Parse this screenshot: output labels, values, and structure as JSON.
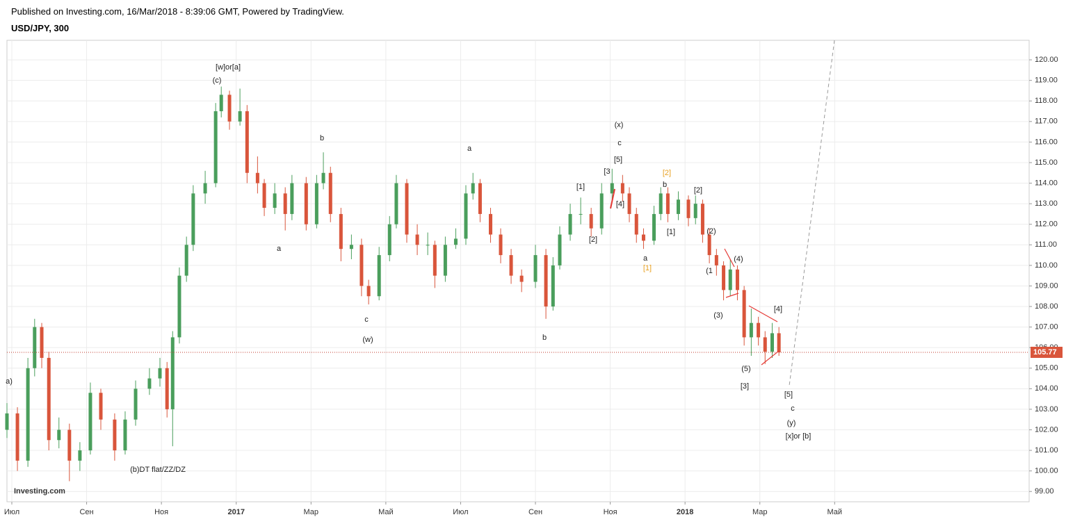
{
  "header": {
    "published": "Published on Investing.com, 16/Mar/2018 - 8:39:06 GMT, Powered by TradingView.",
    "symbol": "USD/JPY, 300"
  },
  "logo": "Investing.com",
  "chart_data": {
    "type": "candlestick",
    "up_color": "#4a9e5c",
    "down_color": "#d9553b",
    "grid": true,
    "x": [
      -0.13,
      0.15,
      0.43,
      0.61,
      0.8,
      0.99,
      1.26,
      1.54,
      1.82,
      2.1,
      2.38,
      2.75,
      3.03,
      3.31,
      3.68,
      3.96,
      4.15,
      4.3,
      4.48,
      4.67,
      4.85,
      5.17,
      5.45,
      5.6,
      5.82,
      6.1,
      6.29,
      6.57,
      6.75,
      7.03,
      7.31,
      7.49,
      7.87,
      8.15,
      8.33,
      8.52,
      8.8,
      9.08,
      9.35,
      9.54,
      9.82,
      10.1,
      10.28,
      10.56,
      10.84,
      11.12,
      11.31,
      11.59,
      11.87,
      12.14,
      12.33,
      12.52,
      12.8,
      13.07,
      13.35,
      13.63,
      14.0,
      14.28,
      14.47,
      14.65,
      14.93,
      15.21,
      15.49,
      15.77,
      16.05,
      16.33,
      16.51,
      16.7,
      16.89,
      17.17,
      17.35,
      17.54,
      17.82,
      18.09,
      18.28,
      18.47,
      18.65,
      18.84,
      19.03,
      19.21,
      19.4,
      19.58,
      19.77,
      19.96,
      20.14,
      20.33,
      20.51
    ],
    "open": [
      102.0,
      102.8,
      100.5,
      105,
      107,
      105.5,
      101.5,
      102,
      100.5,
      101,
      103.8,
      102.5,
      101,
      102.5,
      104,
      104.5,
      105,
      103,
      106.5,
      109.5,
      111,
      113.5,
      114,
      117.5,
      118.3,
      117,
      117.5,
      114.5,
      114,
      112.8,
      113.5,
      112.5,
      114,
      112,
      114,
      114.5,
      112.5,
      110.8,
      111,
      109,
      108.5,
      110.5,
      112,
      114,
      111.5,
      111,
      111,
      109.5,
      111,
      111.3,
      113.5,
      114,
      112.5,
      111.5,
      110.5,
      109.5,
      109.2,
      110.5,
      108,
      110,
      111.5,
      112.5,
      112.5,
      111.8,
      113.5,
      114,
      113.5,
      112.5,
      111.5,
      111.2,
      112.5,
      113.5,
      112.5,
      113.2,
      112.3,
      113,
      111.5,
      110.5,
      110,
      108.8,
      109.8,
      108.8,
      106.5,
      107.2,
      106.5,
      105.8,
      106.7
    ],
    "high": [
      103.3,
      103.1,
      105.5,
      107.4,
      107.2,
      105.8,
      102.6,
      102.3,
      101.4,
      104.3,
      104,
      102.8,
      102.9,
      104.4,
      105,
      105.5,
      105.3,
      106.8,
      109.9,
      111.4,
      113.9,
      114.6,
      117.9,
      118.7,
      118.5,
      118.6,
      117.8,
      115.3,
      114.2,
      114,
      113.8,
      114.4,
      114.3,
      114.4,
      115.5,
      114.8,
      112.8,
      111.5,
      111.3,
      109.3,
      110.9,
      112.4,
      114.4,
      114.2,
      112,
      111.6,
      111.2,
      111.4,
      111.8,
      113.9,
      114.5,
      114.2,
      112.8,
      111.8,
      110.8,
      109.8,
      111,
      110.8,
      110.4,
      111.9,
      113,
      113.3,
      112.8,
      114,
      114.7,
      114.4,
      113.8,
      112.8,
      111.8,
      112.9,
      113.8,
      113.8,
      113.6,
      113.4,
      113.4,
      113.2,
      111.8,
      110.8,
      110.2,
      110.3,
      110,
      109,
      107.9,
      107.5,
      106.8,
      107.2,
      107
    ],
    "low": [
      101.6,
      100.0,
      100.2,
      104.6,
      105.0,
      101.0,
      101.1,
      99.5,
      100.0,
      100.8,
      102,
      100.5,
      100.8,
      102.2,
      103.7,
      104.1,
      102.6,
      101.2,
      106.2,
      109.2,
      110.7,
      113,
      113.8,
      117.2,
      116.6,
      116.8,
      114,
      113.5,
      112.4,
      112.5,
      111.7,
      112.2,
      111.7,
      111.8,
      113.7,
      112.1,
      110.2,
      110.3,
      108.5,
      108.1,
      108.3,
      110.2,
      111.8,
      111.1,
      110.5,
      110.5,
      108.9,
      109.2,
      110.8,
      111,
      113.2,
      112.1,
      111.1,
      110.1,
      109.1,
      108.7,
      108.9,
      107.4,
      107.8,
      109.8,
      111.2,
      112,
      111.4,
      111.5,
      113.1,
      113.1,
      112.1,
      111.1,
      110.8,
      111,
      112.2,
      112.1,
      112.2,
      111.9,
      112,
      111.1,
      110.1,
      109.5,
      108.3,
      108.5,
      108.3,
      106.1,
      105.6,
      106.1,
      105.2,
      105.5,
      105.6
    ],
    "close": [
      102.8,
      100.5,
      105,
      107,
      105.5,
      101.5,
      102,
      100.5,
      101,
      103.8,
      102.5,
      101,
      102.5,
      104,
      104.5,
      105,
      103,
      106.5,
      109.5,
      111,
      113.5,
      114,
      117.5,
      118.3,
      117,
      117.5,
      114.5,
      114,
      112.8,
      113.5,
      112.5,
      114,
      112,
      114,
      114.5,
      112.5,
      110.8,
      111,
      109,
      108.5,
      110.5,
      112,
      114,
      111.5,
      111,
      111,
      109.5,
      111,
      111.3,
      113.5,
      114,
      112.5,
      111.5,
      110.5,
      109.5,
      109.2,
      110.5,
      108,
      110,
      111.5,
      112.5,
      112.5,
      111.8,
      113.5,
      114,
      113.5,
      112.5,
      111.5,
      111.2,
      112.5,
      113.5,
      112.5,
      113.2,
      112.3,
      113,
      111.5,
      110.5,
      110,
      108.8,
      109.8,
      108.8,
      106.5,
      107.2,
      106.5,
      105.8,
      106.7,
      105.77
    ],
    "xlim": [
      -0.13,
      27.2
    ],
    "xticks": [
      {
        "value": 0,
        "label": "Июл"
      },
      {
        "value": 2,
        "label": "Сен"
      },
      {
        "value": 4,
        "label": "Ноя"
      },
      {
        "value": 6,
        "label": "2017"
      },
      {
        "value": 8,
        "label": "Мар"
      },
      {
        "value": 10,
        "label": "Май"
      },
      {
        "value": 12,
        "label": "Июл"
      },
      {
        "value": 14,
        "label": "Сен"
      },
      {
        "value": 16,
        "label": "Ноя"
      },
      {
        "value": 18,
        "label": "2018"
      },
      {
        "value": 20,
        "label": "Мар"
      },
      {
        "value": 22,
        "label": "Май"
      }
    ],
    "ylim": [
      98.5,
      120.95
    ],
    "yticks": [
      {
        "value": 99,
        "label": "99.00"
      },
      {
        "value": 100,
        "label": "100.00"
      },
      {
        "value": 101,
        "label": "101.00"
      },
      {
        "value": 102,
        "label": "102.00"
      },
      {
        "value": 103,
        "label": "103.00"
      },
      {
        "value": 104,
        "label": "104.00"
      },
      {
        "value": 105,
        "label": "105.00"
      },
      {
        "value": 106,
        "label": "106.00"
      },
      {
        "value": 107,
        "label": "107.00"
      },
      {
        "value": 108,
        "label": "108.00"
      },
      {
        "value": 109,
        "label": "109.00"
      },
      {
        "value": 110,
        "label": "110.00"
      },
      {
        "value": 111,
        "label": "111.00"
      },
      {
        "value": 112,
        "label": "112.00"
      },
      {
        "value": 113,
        "label": "113.00"
      },
      {
        "value": 114,
        "label": "114.00"
      },
      {
        "value": 115,
        "label": "115.00"
      },
      {
        "value": 116,
        "label": "116.00"
      },
      {
        "value": 117,
        "label": "117.00"
      },
      {
        "value": 118,
        "label": "118.00"
      },
      {
        "value": 119,
        "label": "119.00"
      },
      {
        "value": 120,
        "label": "120.00"
      }
    ],
    "annotations": [
      {
        "text": "[w]or[a]"
      },
      {
        "text": "(c)"
      },
      {
        "text": "b"
      },
      {
        "text": "a"
      },
      {
        "text": "c"
      },
      {
        "text": "(w)"
      },
      {
        "text": "a"
      },
      {
        "text": "b"
      },
      {
        "text": "(x)"
      },
      {
        "text": "c"
      },
      {
        "text": "[5]"
      },
      {
        "text": "[3"
      },
      {
        "text": "[1]"
      },
      {
        "text": "[4]"
      },
      {
        "text": "[2]"
      },
      {
        "text": "[2]",
        "color": "#e8a020"
      },
      {
        "text": "b"
      },
      {
        "text": "[1]"
      },
      {
        "text": "a"
      },
      {
        "text": "[1]",
        "color": "#e8a020"
      },
      {
        "text": "[2]"
      },
      {
        "text": "(2)"
      },
      {
        "text": "(4)"
      },
      {
        "text": "(1"
      },
      {
        "text": "(3)"
      },
      {
        "text": "[4]"
      },
      {
        "text": "(5)"
      },
      {
        "text": "[3]"
      },
      {
        "text": "[5]"
      },
      {
        "text": "c"
      },
      {
        "text": "(y)"
      },
      {
        "text": "[x]or [b]"
      },
      {
        "text": "a)"
      },
      {
        "text": "(b)DT flat/ZZ/DZ"
      }
    ]
  }
}
